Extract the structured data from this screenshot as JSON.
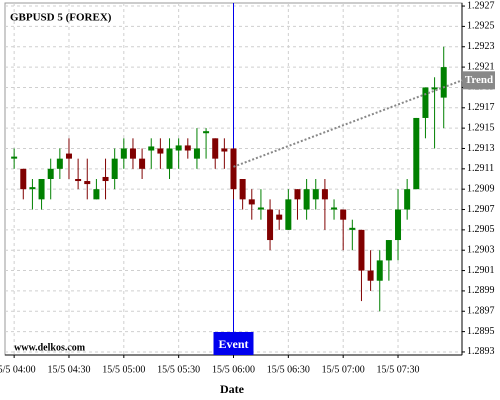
{
  "chart_data": {
    "type": "candlestick",
    "title": "GBPUSD 5 (FOREX)",
    "xlabel": "Date",
    "watermark": "www.delkos.com",
    "x": [
      "15/5 04:00",
      "15/5 04:05",
      "15/5 04:10",
      "15/5 04:15",
      "15/5 04:20",
      "15/5 04:25",
      "15/5 04:30",
      "15/5 04:35",
      "15/5 04:40",
      "15/5 04:45",
      "15/5 04:50",
      "15/5 04:55",
      "15/5 05:00",
      "15/5 05:05",
      "15/5 05:10",
      "15/5 05:15",
      "15/5 05:20",
      "15/5 05:25",
      "15/5 05:30",
      "15/5 05:35",
      "15/5 05:40",
      "15/5 05:45",
      "15/5 05:50",
      "15/5 05:55",
      "15/5 06:00",
      "15/5 06:05",
      "15/5 06:10",
      "15/5 06:15",
      "15/5 06:20",
      "15/5 06:25",
      "15/5 06:30",
      "15/5 06:35",
      "15/5 06:40",
      "15/5 06:45",
      "15/5 06:50",
      "15/5 06:55",
      "15/5 07:00",
      "15/5 07:05",
      "15/5 07:10",
      "15/5 07:15",
      "15/5 07:20",
      "15/5 07:25",
      "15/5 07:30",
      "15/5 07:35",
      "15/5 07:40",
      "15/5 07:45",
      "15/5 07:50",
      "15/5 07:55"
    ],
    "open": [
      1.2912,
      1.2911,
      1.2909,
      1.2908,
      1.291,
      1.2911,
      1.29125,
      1.291,
      1.29098,
      1.2908,
      1.29102,
      1.291,
      1.2912,
      1.2913,
      1.2912,
      1.29128,
      1.2913,
      1.2911,
      1.29128,
      1.29133,
      1.2912,
      1.29145,
      1.2914,
      1.2913,
      1.2913,
      1.291,
      1.2908,
      1.2907,
      1.2907,
      1.29065,
      1.2905,
      1.2909,
      1.2907,
      1.2908,
      1.2909,
      1.2907,
      1.2907,
      1.2905,
      1.2905,
      1.2901,
      1.29,
      1.2902,
      1.2904,
      1.2907,
      1.2909,
      1.2916,
      1.29188,
      1.2918
    ],
    "high": [
      1.2913,
      1.2911,
      1.291,
      1.291,
      1.2912,
      1.2913,
      1.2914,
      1.2912,
      1.2912,
      1.291,
      1.2912,
      1.2913,
      1.2914,
      1.2914,
      1.2913,
      1.2914,
      1.2914,
      1.2914,
      1.2914,
      1.2914,
      1.2915,
      1.2915,
      1.2914,
      1.2914,
      1.2913,
      1.291,
      1.2909,
      1.2909,
      1.2908,
      1.2907,
      1.2909,
      1.2909,
      1.291,
      1.291,
      1.291,
      1.2908,
      1.2907,
      1.2906,
      1.2905,
      1.2903,
      1.2903,
      1.2904,
      1.2909,
      1.291,
      1.2916,
      1.2919,
      1.292,
      1.2923
    ],
    "low": [
      1.2911,
      1.2908,
      1.2907,
      1.2907,
      1.2908,
      1.291,
      1.291,
      1.2909,
      1.2908,
      1.2908,
      1.2908,
      1.2909,
      1.2911,
      1.2911,
      1.291,
      1.2911,
      1.2911,
      1.291,
      1.2911,
      1.2912,
      1.2911,
      1.2912,
      1.2911,
      1.2911,
      1.2908,
      1.2907,
      1.2906,
      1.2906,
      1.2903,
      1.2905,
      1.2905,
      1.2906,
      1.2906,
      1.2907,
      1.2905,
      1.2906,
      1.2903,
      1.2903,
      1.2898,
      1.2899,
      1.2897,
      1.29,
      1.2902,
      1.2906,
      1.2909,
      1.2914,
      1.2913,
      1.2915
    ],
    "close": [
      1.29122,
      1.2909,
      1.29092,
      1.291,
      1.2911,
      1.2912,
      1.2912,
      1.29098,
      1.29095,
      1.2909,
      1.29098,
      1.2912,
      1.2913,
      1.2912,
      1.2911,
      1.29132,
      1.29125,
      1.2913,
      1.29133,
      1.29128,
      1.2913,
      1.29147,
      1.2912,
      1.29127,
      1.2909,
      1.2908,
      1.29075,
      1.29072,
      1.2904,
      1.2906,
      1.2908,
      1.2908,
      1.2909,
      1.2909,
      1.2908,
      1.29072,
      1.2906,
      1.29052,
      1.2901,
      1.29,
      1.2902,
      1.2904,
      1.2907,
      1.2909,
      1.2916,
      1.2919,
      1.2919,
      1.2921
    ],
    "up_color": "#008000",
    "down_color": "#800000",
    "xlim": [
      "15/5 03:55",
      "15/5 08:05"
    ],
    "xticks": [
      "15/5 04:00",
      "15/5 04:30",
      "15/5 05:00",
      "15/5 05:30",
      "15/5 06:00",
      "15/5 06:30",
      "15/5 07:00",
      "15/5 07:30"
    ],
    "ylim": [
      1.28927,
      1.29273
    ],
    "yticks": [
      1.2893,
      1.2895,
      1.2897,
      1.2899,
      1.2901,
      1.2903,
      1.2905,
      1.2907,
      1.2909,
      1.2911,
      1.2913,
      1.2915,
      1.2917,
      1.2919,
      1.2921,
      1.2923,
      1.2925,
      1.2927
    ],
    "grid": true,
    "trend": {
      "label": "Trend",
      "x": [
        "15/5 06:00",
        "15/5 08:05"
      ],
      "values": [
        1.29112,
        1.29197
      ],
      "color": "#888888"
    },
    "event": {
      "label": "Event",
      "x": "15/5 06:00",
      "color": "#0000ee"
    }
  }
}
